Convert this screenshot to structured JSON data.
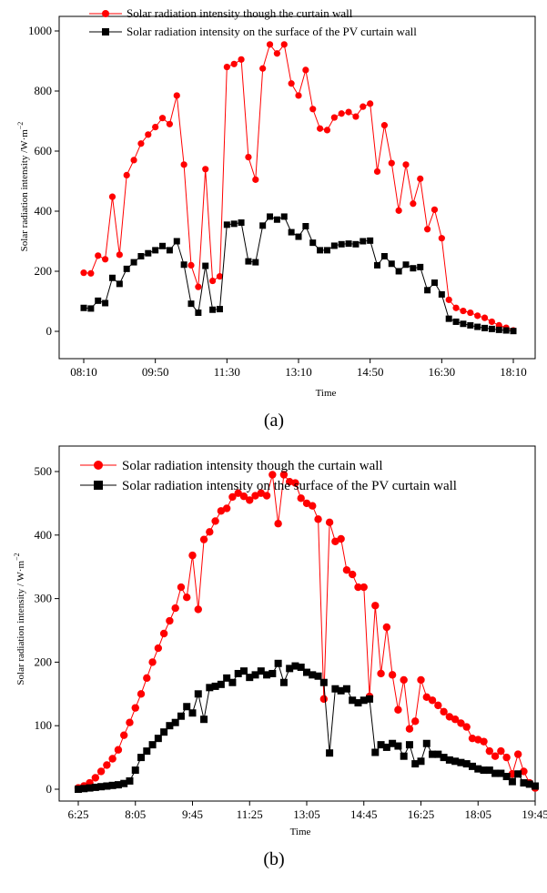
{
  "chart_data": [
    {
      "type": "line",
      "panel_label": "(a)",
      "xlabel": "Time",
      "ylabel": "Solar radiation intensity /W·m",
      "ylabel_sup": "−2",
      "ylim": [
        -100,
        1030
      ],
      "yticks": [
        0,
        200,
        400,
        600,
        800,
        1000
      ],
      "xticks": [
        "08:10",
        "09:50",
        "11:30",
        "13:10",
        "14:50",
        "16:30",
        "18:10"
      ],
      "x_start": "08:10",
      "x_step_minutes": 10,
      "series": [
        {
          "name": "Solar radiation intensity though the curtain wall",
          "color": "#ff0000",
          "marker": "circle",
          "values": [
            195,
            193,
            252,
            240,
            448,
            255,
            520,
            570,
            625,
            655,
            680,
            710,
            690,
            785,
            555,
            220,
            148,
            540,
            168,
            183,
            880,
            890,
            905,
            580,
            505,
            875,
            955,
            925,
            955,
            825,
            785,
            870,
            740,
            675,
            670,
            712,
            725,
            730,
            715,
            748,
            758,
            532,
            686,
            560,
            402,
            555,
            425,
            508,
            340,
            405,
            310,
            105,
            78,
            68,
            62,
            52,
            45,
            32,
            20,
            12,
            3
          ]
        },
        {
          "name": "Solar radiation intensity on the surface of the PV curtain wall",
          "color": "#000000",
          "marker": "square",
          "values": [
            78,
            76,
            102,
            94,
            178,
            158,
            208,
            230,
            250,
            260,
            270,
            284,
            270,
            300,
            222,
            92,
            62,
            218,
            72,
            74,
            355,
            358,
            362,
            233,
            230,
            352,
            382,
            372,
            382,
            330,
            315,
            350,
            295,
            270,
            270,
            285,
            290,
            292,
            290,
            300,
            302,
            220,
            250,
            225,
            200,
            222,
            210,
            214,
            137,
            162,
            123,
            42,
            32,
            25,
            20,
            15,
            11,
            8,
            5,
            3,
            1
          ]
        }
      ]
    },
    {
      "type": "line",
      "panel_label": "(b)",
      "xlabel": "Time",
      "ylabel": "Solar radiation intensity / W·m",
      "ylabel_sup": "−2",
      "ylim": [
        -20,
        525
      ],
      "yticks": [
        0,
        100,
        200,
        300,
        400,
        500
      ],
      "xticks": [
        "6:25",
        "8:05",
        "9:45",
        "11:25",
        "13:05",
        "14:45",
        "16:25",
        "18:05",
        "19:45"
      ],
      "x_start": "6:25",
      "x_step_minutes": 10,
      "series": [
        {
          "name": "Solar radiation intensity though the curtain wall",
          "color": "#ff0000",
          "marker": "circle",
          "values": [
            2,
            5,
            10,
            18,
            28,
            38,
            48,
            62,
            85,
            105,
            128,
            150,
            175,
            200,
            222,
            245,
            265,
            285,
            318,
            302,
            368,
            283,
            393,
            405,
            422,
            438,
            442,
            460,
            466,
            461,
            455,
            462,
            466,
            462,
            495,
            418,
            495,
            484,
            482,
            458,
            450,
            446,
            425,
            142,
            420,
            390,
            394,
            345,
            338,
            318,
            318,
            146,
            289,
            182,
            255,
            180,
            125,
            172,
            95,
            107,
            172,
            145,
            140,
            132,
            122,
            114,
            110,
            104,
            98,
            80,
            78,
            75,
            60,
            52,
            60,
            50,
            24,
            55,
            28,
            10,
            2
          ]
        },
        {
          "name": "Solar radiation intensity on the surface of the PV curtain wall",
          "color": "#000000",
          "marker": "square",
          "values": [
            0,
            1,
            2,
            3,
            4,
            5,
            6,
            7,
            9,
            13,
            30,
            50,
            60,
            70,
            80,
            90,
            100,
            105,
            115,
            130,
            120,
            150,
            110,
            160,
            162,
            165,
            175,
            168,
            182,
            186,
            176,
            180,
            186,
            180,
            182,
            198,
            168,
            190,
            194,
            192,
            184,
            180,
            178,
            168,
            57,
            158,
            155,
            158,
            140,
            136,
            140,
            142,
            58,
            70,
            66,
            72,
            68,
            52,
            70,
            40,
            44,
            72,
            55,
            55,
            50,
            46,
            44,
            42,
            40,
            36,
            32,
            30,
            30,
            25,
            25,
            20,
            12,
            24,
            10,
            8,
            5
          ]
        }
      ]
    }
  ]
}
